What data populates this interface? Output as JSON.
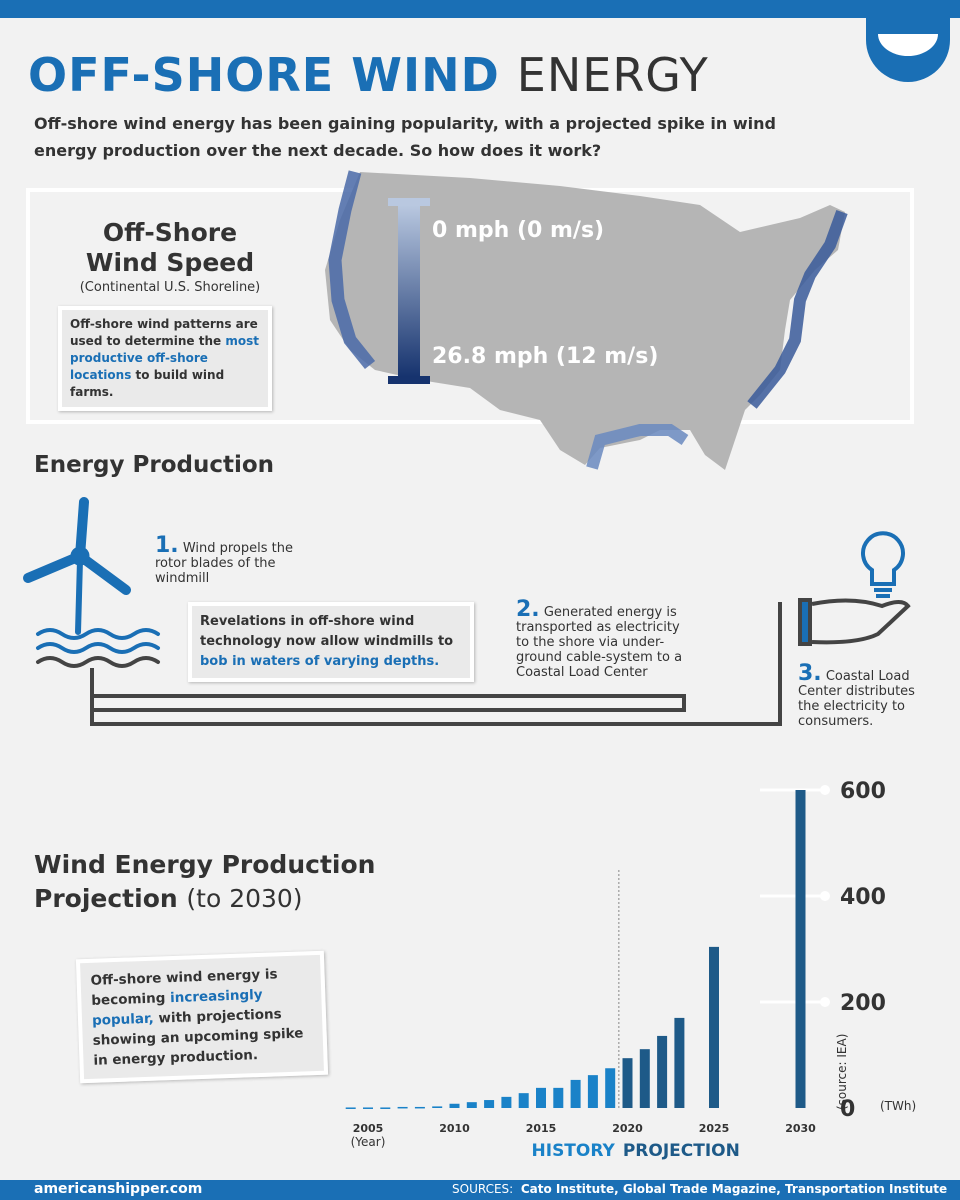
{
  "header": {
    "title_blue": "OFF-SHORE WIND",
    "title_rest": "ENERGY",
    "intro": "Off-shore wind energy has been gaining popularity, with a projected spike in wind energy production over the next decade. So how does it work?"
  },
  "wind_speed": {
    "title_lines": [
      "Off-Shore",
      "Wind Speed"
    ],
    "subtitle": "(Continental U.S. Shoreline)",
    "note": [
      "Off-shore wind patterns are used to determine the ",
      "most productive off-shore locations",
      " to build wind farms."
    ],
    "legend_min": "0 mph (0 m/s)",
    "legend_max": "26.8 mph (12 m/s)"
  },
  "energy": {
    "title": "Energy Production",
    "steps": [
      {
        "num": "1.",
        "text": "Wind propels the rotor blades of the windmill"
      },
      {
        "num": "2.",
        "text": "Generated energy is transported as electricity to the shore via under-ground cable-system to a Coastal Load Center"
      },
      {
        "num": "3.",
        "text": "Coastal Load Center distributes the electricity to consumers."
      }
    ],
    "callout": [
      "Revelations in off-shore wind technology now allow windmills to ",
      "bob in waters of varying depths."
    ]
  },
  "chart_data": {
    "type": "bar",
    "title": "Wind Energy Production",
    "title2": "Projection",
    "subtitle": "(to 2030)",
    "x_label": "(Year)",
    "y_unit": "(TWh)",
    "source": "(source: IEA)",
    "callout": [
      "Off-shore wind energy is becoming ",
      "increasingly popular,",
      " with projections showing an upcoming spike in energy production."
    ],
    "series": [
      {
        "name": "HISTORY",
        "color": "#1a82c8",
        "x": [
          2004,
          2005,
          2006,
          2007,
          2008,
          2009,
          2010,
          2011,
          2012,
          2013,
          2014,
          2015,
          2016,
          2017,
          2018,
          2019
        ],
        "values": [
          1,
          1,
          1,
          2,
          2,
          3,
          8,
          11,
          15,
          21,
          28,
          38,
          38,
          53,
          62,
          75
        ]
      },
      {
        "name": "PROJECTION",
        "color": "#1e5a88",
        "x": [
          2020,
          2021,
          2022,
          2023,
          2025,
          2030
        ],
        "values": [
          94,
          111,
          136,
          170,
          304,
          600
        ]
      }
    ],
    "xlim": [
      2003,
      2031
    ],
    "xticks": [
      2005,
      2010,
      2015,
      2020,
      2025,
      2030
    ],
    "ylim": [
      0,
      600
    ],
    "yticks": [
      0,
      200,
      400,
      600
    ]
  },
  "footer": {
    "site": "americanshipper.com",
    "sources_label": "SOURCES:",
    "sources": "Cato Institute, Global Trade Magazine, Transportation Institute"
  }
}
